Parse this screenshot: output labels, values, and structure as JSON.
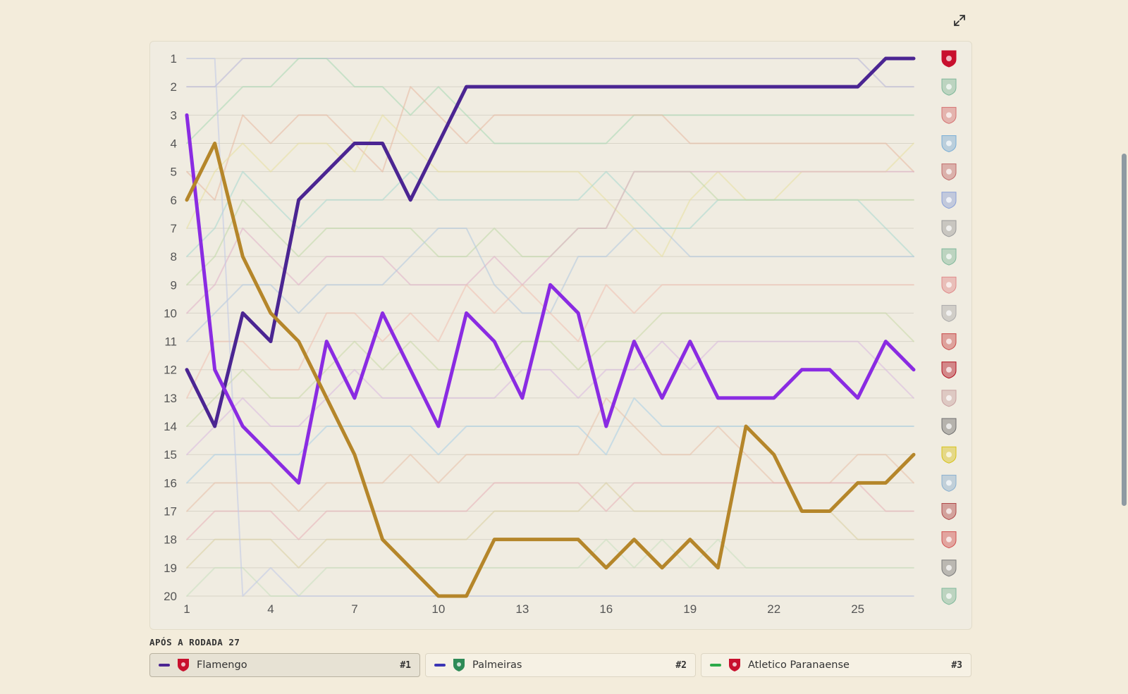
{
  "toolbar": {
    "expand_icon": "expand-icon"
  },
  "caption": "APÓS A RODADA 27",
  "colors": {
    "background": "#f3ecdb",
    "panel": "#f0ece1",
    "grid": "#d8d4c8",
    "axis_text": "#555555"
  },
  "chart_data": {
    "type": "line",
    "title": "",
    "xlabel": "",
    "ylabel": "",
    "x": [
      1,
      2,
      3,
      4,
      5,
      6,
      7,
      8,
      9,
      10,
      11,
      12,
      13,
      14,
      15,
      16,
      17,
      18,
      19,
      20,
      21,
      22,
      23,
      24,
      25,
      26,
      27
    ],
    "x_ticks": [
      1,
      4,
      7,
      10,
      13,
      16,
      19,
      22,
      25
    ],
    "xlim": [
      1,
      27
    ],
    "ylim": [
      1,
      20
    ],
    "y_ticks": [
      1,
      2,
      3,
      4,
      5,
      6,
      7,
      8,
      9,
      10,
      11,
      12,
      13,
      14,
      15,
      16,
      17,
      18,
      19,
      20
    ],
    "y_inverted": true,
    "grid": true,
    "final_standing_crests": [
      {
        "rank": 1,
        "color": "#c8102e",
        "icon": "flamengo-crest-icon"
      },
      {
        "rank": 2,
        "color": "#7fb89a",
        "icon": "palmeiras-crest-icon"
      },
      {
        "rank": 3,
        "color": "#d57272",
        "icon": "athletico-crest-icon"
      },
      {
        "rank": 4,
        "color": "#7aaed6",
        "icon": "bahia-crest-icon"
      },
      {
        "rank": 5,
        "color": "#c06a6a",
        "icon": "fluminense-crest-icon"
      },
      {
        "rank": 6,
        "color": "#8aa0d8",
        "icon": "cruzeiro-crest-icon"
      },
      {
        "rank": 7,
        "color": "#9a9a9a",
        "icon": "atletico-mg-crest-icon"
      },
      {
        "rank": 8,
        "color": "#7fb89a",
        "icon": "juventude-crest-icon"
      },
      {
        "rank": 9,
        "color": "#e08a8a",
        "icon": "bragantino-crest-icon"
      },
      {
        "rank": 10,
        "color": "#aaaaaa",
        "icon": "santos-crest-icon"
      },
      {
        "rank": 11,
        "color": "#c84a4a",
        "icon": "sao-paulo-crest-icon"
      },
      {
        "rank": 12,
        "color": "#b01020",
        "icon": "vitoria-crest-icon"
      },
      {
        "rank": 13,
        "color": "#c8a0a0",
        "icon": "corinthians-crest-icon"
      },
      {
        "rank": 14,
        "color": "#6e6e6e",
        "icon": "botafogo-crest-icon"
      },
      {
        "rank": 15,
        "color": "#d6c21a",
        "icon": "mirassol-crest-icon"
      },
      {
        "rank": 16,
        "color": "#8ab0d0",
        "icon": "gremio-crest-icon"
      },
      {
        "rank": 17,
        "color": "#b04a4a",
        "icon": "vasco-crest-icon"
      },
      {
        "rank": 18,
        "color": "#d05050",
        "icon": "internacional-crest-icon"
      },
      {
        "rank": 19,
        "color": "#7a7a7a",
        "icon": "ceara-crest-icon"
      },
      {
        "rank": 20,
        "color": "#7fb89a",
        "icon": "chapecoense-crest-icon"
      }
    ],
    "series": [
      {
        "color": "#4b2592",
        "highlight": true,
        "values": [
          12,
          14,
          10,
          11,
          6,
          5,
          4,
          4,
          6,
          4,
          2,
          2,
          2,
          2,
          2,
          2,
          2,
          2,
          2,
          2,
          2,
          2,
          2,
          2,
          2,
          1,
          1
        ]
      },
      {
        "color": "#8a2be2",
        "highlight": true,
        "values": [
          3,
          12,
          14,
          15,
          16,
          11,
          13,
          10,
          12,
          14,
          10,
          11,
          13,
          9,
          10,
          14,
          11,
          13,
          11,
          13,
          13,
          13,
          12,
          12,
          13,
          11,
          12
        ]
      },
      {
        "color": "#b5862a",
        "highlight": true,
        "values": [
          6,
          4,
          8,
          10,
          11,
          13,
          15,
          18,
          19,
          20,
          20,
          18,
          18,
          18,
          18,
          19,
          18,
          19,
          18,
          19,
          14,
          15,
          17,
          17,
          16,
          16,
          15
        ]
      },
      {
        "color": "#b7b4d8",
        "values": [
          2,
          2,
          1,
          1,
          1,
          1,
          1,
          1,
          1,
          1,
          1,
          1,
          1,
          1,
          1,
          1,
          1,
          1,
          1,
          1,
          1,
          1,
          1,
          1,
          1,
          2,
          2
        ]
      },
      {
        "color": "#a8d8b4",
        "values": [
          4,
          3,
          2,
          2,
          1,
          1,
          2,
          2,
          3,
          2,
          3,
          4,
          4,
          4,
          4,
          4,
          3,
          3,
          3,
          3,
          3,
          3,
          3,
          3,
          3,
          3,
          3
        ]
      },
      {
        "color": "#e8b8a0",
        "values": [
          5,
          6,
          3,
          4,
          3,
          3,
          4,
          5,
          2,
          3,
          4,
          3,
          3,
          3,
          3,
          3,
          3,
          3,
          4,
          4,
          4,
          4,
          4,
          4,
          4,
          4,
          5
        ]
      },
      {
        "color": "#e8e0a0",
        "values": [
          7,
          5,
          4,
          5,
          4,
          4,
          5,
          3,
          4,
          5,
          5,
          5,
          5,
          5,
          5,
          6,
          7,
          8,
          6,
          5,
          6,
          6,
          5,
          5,
          5,
          5,
          4
        ]
      },
      {
        "color": "#a8d8d0",
        "values": [
          8,
          7,
          5,
          6,
          7,
          6,
          6,
          6,
          5,
          6,
          6,
          6,
          6,
          6,
          6,
          5,
          6,
          7,
          7,
          6,
          6,
          6,
          6,
          6,
          6,
          7,
          8
        ]
      },
      {
        "color": "#c0d8a8",
        "values": [
          9,
          8,
          6,
          7,
          8,
          7,
          7,
          7,
          7,
          8,
          8,
          7,
          8,
          8,
          7,
          7,
          5,
          5,
          5,
          6,
          6,
          6,
          6,
          6,
          6,
          6,
          6
        ]
      },
      {
        "color": "#e0b0c8",
        "values": [
          10,
          9,
          7,
          8,
          9,
          8,
          8,
          8,
          9,
          9,
          9,
          8,
          9,
          8,
          7,
          7,
          5,
          5,
          5,
          5,
          5,
          5,
          5,
          5,
          5,
          5,
          5
        ]
      },
      {
        "color": "#b0c8e0",
        "values": [
          11,
          10,
          9,
          9,
          10,
          9,
          9,
          9,
          8,
          7,
          7,
          9,
          10,
          10,
          8,
          8,
          7,
          7,
          8,
          8,
          8,
          8,
          8,
          8,
          8,
          8,
          8
        ]
      },
      {
        "color": "#f0c0b0",
        "values": [
          13,
          11,
          11,
          12,
          12,
          10,
          10,
          11,
          10,
          11,
          9,
          10,
          9,
          10,
          11,
          9,
          10,
          9,
          9,
          9,
          9,
          9,
          9,
          9,
          9,
          9,
          9
        ]
      },
      {
        "color": "#c8d8a8",
        "values": [
          14,
          13,
          12,
          13,
          13,
          12,
          11,
          12,
          11,
          12,
          12,
          12,
          11,
          11,
          12,
          11,
          11,
          10,
          10,
          10,
          10,
          10,
          10,
          10,
          10,
          10,
          11
        ]
      },
      {
        "color": "#d8b8e0",
        "values": [
          15,
          14,
          13,
          14,
          14,
          13,
          12,
          13,
          13,
          13,
          13,
          13,
          12,
          12,
          13,
          12,
          12,
          11,
          12,
          11,
          11,
          11,
          11,
          11,
          11,
          12,
          13
        ]
      },
      {
        "color": "#a8d0e8",
        "values": [
          16,
          15,
          15,
          15,
          15,
          14,
          14,
          14,
          14,
          15,
          14,
          14,
          14,
          14,
          14,
          15,
          13,
          14,
          14,
          14,
          14,
          14,
          14,
          14,
          14,
          14,
          14
        ]
      },
      {
        "color": "#e8c0a8",
        "values": [
          17,
          16,
          16,
          16,
          17,
          16,
          16,
          16,
          15,
          16,
          15,
          15,
          15,
          15,
          15,
          13,
          14,
          15,
          15,
          14,
          15,
          16,
          16,
          16,
          15,
          15,
          16
        ]
      },
      {
        "color": "#e8b0b8",
        "values": [
          18,
          17,
          17,
          17,
          18,
          17,
          17,
          17,
          17,
          17,
          17,
          16,
          16,
          16,
          16,
          17,
          16,
          16,
          16,
          16,
          16,
          16,
          16,
          16,
          16,
          17,
          17
        ]
      },
      {
        "color": "#d8d0a0",
        "values": [
          19,
          18,
          18,
          18,
          19,
          18,
          18,
          18,
          18,
          18,
          18,
          17,
          17,
          17,
          17,
          16,
          17,
          17,
          17,
          17,
          17,
          17,
          17,
          17,
          18,
          18,
          18
        ]
      },
      {
        "color": "#c8e0c0",
        "values": [
          20,
          19,
          19,
          20,
          20,
          19,
          19,
          19,
          19,
          19,
          19,
          19,
          19,
          19,
          19,
          18,
          19,
          18,
          19,
          18,
          19,
          19,
          19,
          19,
          19,
          19,
          19
        ]
      },
      {
        "color": "#c0c8e8",
        "values": [
          1,
          1,
          20,
          19,
          20,
          20,
          20,
          20,
          20,
          20,
          20,
          20,
          20,
          20,
          20,
          20,
          20,
          20,
          20,
          20,
          20,
          20,
          20,
          20,
          20,
          20,
          20
        ]
      }
    ]
  },
  "standings": [
    {
      "name": "Flamengo",
      "rank": "#1",
      "color": "#4b2592",
      "crest_color": "#c8102e",
      "icon": "flamengo-crest-icon",
      "active": true
    },
    {
      "name": "Palmeiras",
      "rank": "#2",
      "color": "#3b35b5",
      "crest_color": "#2e8b57",
      "icon": "palmeiras-crest-icon",
      "active": false
    },
    {
      "name": "Atletico Paranaense",
      "rank": "#3",
      "color": "#2daa4a",
      "crest_color": "#c8102e",
      "icon": "athletico-crest-icon",
      "active": false
    }
  ]
}
